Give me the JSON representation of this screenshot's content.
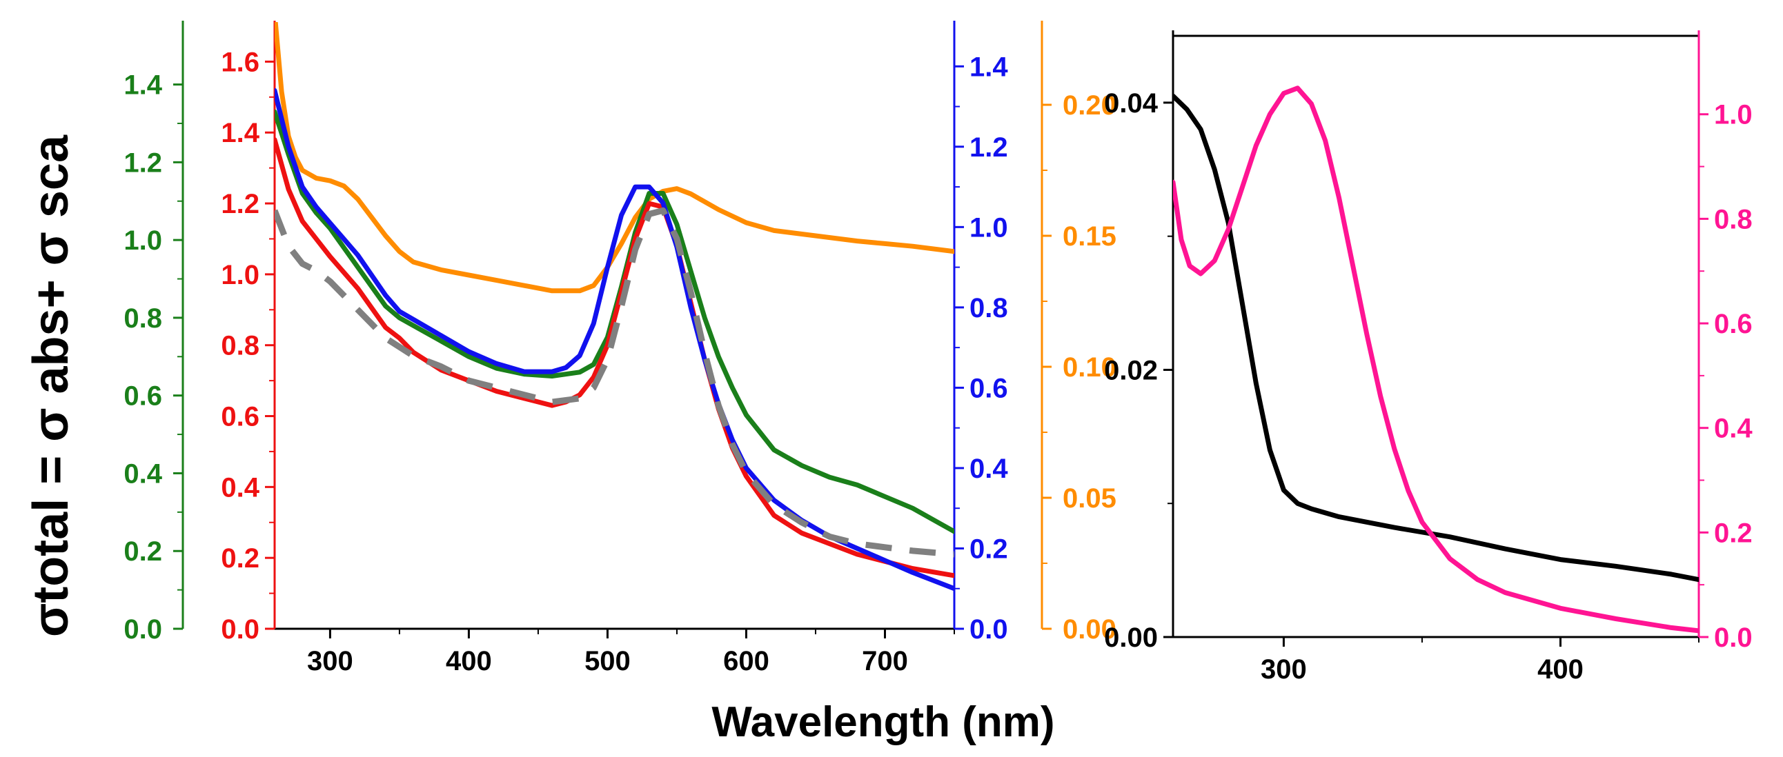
{
  "figure": {
    "ylabel": "σtotal = σ abs+ σ sca",
    "xlabel": "Wavelength (nm)"
  },
  "colors": {
    "green": "#1a7f1a",
    "red": "#ee1111",
    "blue": "#1111ee",
    "orange": "#ff8c00",
    "gray": "#808080",
    "black": "#000000",
    "magenta": "#ff1493"
  },
  "chart_data": [
    {
      "type": "line",
      "title": "",
      "xlabel": "Wavelength (nm)",
      "xlim": [
        260,
        750
      ],
      "xticks": [
        300,
        400,
        500,
        600,
        700
      ],
      "ylabel": "σtotal = σ abs+ σ sca",
      "axes": [
        {
          "name": "green-axis",
          "side": "outer-left",
          "color": "green",
          "ylim": [
            0,
            1.55
          ],
          "ticks": [
            0.0,
            0.2,
            0.4,
            0.6,
            0.8,
            1.0,
            1.2,
            1.4
          ],
          "tick_labels": [
            "0.0",
            "0.2",
            "0.4",
            "0.6",
            "0.8",
            "1.0",
            "1.2",
            "1.4"
          ]
        },
        {
          "name": "red-axis",
          "side": "inner-left",
          "color": "red",
          "ylim": [
            0,
            1.7
          ],
          "ticks": [
            0.0,
            0.2,
            0.4,
            0.6,
            0.8,
            1.0,
            1.2,
            1.4,
            1.6
          ],
          "tick_labels": [
            "0.0",
            "0.2",
            "0.4",
            "0.6",
            "0.8",
            "1.0",
            "1.2",
            "1.4",
            "1.6"
          ]
        },
        {
          "name": "blue-axis",
          "side": "inner-right",
          "color": "blue",
          "ylim": [
            0,
            1.5
          ],
          "ticks": [
            0.0,
            0.2,
            0.4,
            0.6,
            0.8,
            1.0,
            1.2,
            1.4
          ],
          "tick_labels": [
            "0.0",
            "0.2",
            "0.4",
            "0.6",
            "0.8",
            "1.0",
            "1.2",
            "1.4"
          ]
        },
        {
          "name": "orange-axis",
          "side": "outer-right",
          "color": "orange",
          "ylim": [
            0,
            0.23
          ],
          "ticks": [
            0.0,
            0.05,
            0.1,
            0.15,
            0.2
          ],
          "tick_labels": [
            "0.00",
            "0.05",
            "0.10",
            "0.15",
            "0.20"
          ]
        }
      ],
      "series": [
        {
          "name": "orange",
          "color": "orange",
          "axis": 3,
          "dashed": false,
          "x": [
            260,
            265,
            270,
            275,
            280,
            290,
            300,
            310,
            320,
            330,
            340,
            350,
            360,
            380,
            400,
            420,
            440,
            460,
            480,
            490,
            500,
            510,
            520,
            530,
            540,
            550,
            560,
            580,
            600,
            620,
            650,
            680,
            700,
            720,
            750
          ],
          "y": [
            0.235,
            0.205,
            0.188,
            0.18,
            0.175,
            0.172,
            0.171,
            0.169,
            0.164,
            0.157,
            0.15,
            0.144,
            0.14,
            0.137,
            0.135,
            0.133,
            0.131,
            0.129,
            0.129,
            0.131,
            0.138,
            0.147,
            0.157,
            0.164,
            0.167,
            0.168,
            0.166,
            0.16,
            0.155,
            0.152,
            0.15,
            0.148,
            0.147,
            0.146,
            0.144
          ]
        },
        {
          "name": "green",
          "color": "green",
          "axis": 0,
          "dashed": false,
          "x": [
            260,
            270,
            280,
            290,
            300,
            320,
            340,
            350,
            360,
            380,
            400,
            420,
            440,
            460,
            480,
            490,
            500,
            510,
            520,
            530,
            540,
            550,
            560,
            570,
            580,
            590,
            600,
            620,
            640,
            660,
            680,
            700,
            720,
            750
          ],
          "y": [
            1.33,
            1.22,
            1.12,
            1.07,
            1.03,
            0.93,
            0.83,
            0.8,
            0.78,
            0.74,
            0.7,
            0.67,
            0.655,
            0.65,
            0.66,
            0.68,
            0.75,
            0.88,
            1.02,
            1.12,
            1.12,
            1.04,
            0.92,
            0.8,
            0.7,
            0.62,
            0.55,
            0.46,
            0.42,
            0.39,
            0.37,
            0.34,
            0.31,
            0.25
          ]
        },
        {
          "name": "red",
          "color": "red",
          "axis": 1,
          "dashed": false,
          "x": [
            260,
            270,
            280,
            290,
            300,
            320,
            340,
            350,
            360,
            380,
            400,
            420,
            440,
            460,
            470,
            480,
            490,
            500,
            510,
            520,
            530,
            540,
            550,
            560,
            570,
            580,
            590,
            600,
            620,
            640,
            660,
            680,
            700,
            720,
            750
          ],
          "y": [
            1.38,
            1.24,
            1.15,
            1.1,
            1.05,
            0.96,
            0.85,
            0.82,
            0.78,
            0.73,
            0.7,
            0.67,
            0.65,
            0.63,
            0.64,
            0.66,
            0.71,
            0.8,
            0.95,
            1.1,
            1.2,
            1.19,
            1.08,
            0.92,
            0.76,
            0.62,
            0.51,
            0.43,
            0.32,
            0.27,
            0.24,
            0.21,
            0.19,
            0.17,
            0.15
          ]
        },
        {
          "name": "blue",
          "color": "blue",
          "axis": 2,
          "dashed": false,
          "x": [
            260,
            270,
            280,
            290,
            300,
            320,
            340,
            350,
            360,
            380,
            400,
            420,
            440,
            460,
            470,
            480,
            490,
            500,
            510,
            520,
            530,
            540,
            550,
            560,
            570,
            580,
            590,
            600,
            620,
            640,
            660,
            680,
            700,
            720,
            750
          ],
          "y": [
            1.34,
            1.2,
            1.1,
            1.05,
            1.01,
            0.93,
            0.83,
            0.79,
            0.77,
            0.73,
            0.69,
            0.66,
            0.64,
            0.64,
            0.65,
            0.68,
            0.76,
            0.9,
            1.03,
            1.1,
            1.1,
            1.06,
            0.95,
            0.8,
            0.67,
            0.56,
            0.47,
            0.4,
            0.32,
            0.27,
            0.23,
            0.2,
            0.17,
            0.14,
            0.1
          ]
        },
        {
          "name": "gray-dashed",
          "color": "gray",
          "axis": 1,
          "dashed": true,
          "x": [
            260,
            270,
            280,
            290,
            300,
            320,
            340,
            360,
            380,
            400,
            420,
            440,
            460,
            480,
            490,
            500,
            510,
            520,
            530,
            540,
            550,
            560,
            570,
            580,
            590,
            600,
            620,
            640,
            660,
            680,
            700,
            720,
            750
          ],
          "y": [
            1.18,
            1.08,
            1.03,
            1.01,
            0.98,
            0.9,
            0.82,
            0.77,
            0.74,
            0.7,
            0.68,
            0.66,
            0.64,
            0.65,
            0.68,
            0.76,
            0.91,
            1.07,
            1.17,
            1.18,
            1.1,
            0.95,
            0.78,
            0.63,
            0.52,
            0.44,
            0.35,
            0.3,
            0.26,
            0.24,
            0.23,
            0.22,
            0.21
          ]
        }
      ]
    },
    {
      "type": "line",
      "title": "",
      "xlabel": "Wavelength (nm)",
      "xlim": [
        260,
        450
      ],
      "xticks": [
        300,
        400
      ],
      "axes": [
        {
          "name": "black-axis",
          "side": "left",
          "color": "black",
          "ylim": [
            0,
            0.045
          ],
          "ticks": [
            0.0,
            0.02,
            0.04
          ],
          "tick_labels": [
            "0.00",
            "0.02",
            "0.04"
          ]
        },
        {
          "name": "magenta-axis",
          "side": "right",
          "color": "magenta",
          "ylim": [
            0,
            1.15
          ],
          "ticks": [
            0.0,
            0.2,
            0.4,
            0.6,
            0.8,
            1.0
          ],
          "tick_labels": [
            "0.0",
            "0.2",
            "0.4",
            "0.6",
            "0.8",
            "1.0"
          ]
        }
      ],
      "series": [
        {
          "name": "black",
          "color": "black",
          "axis": 0,
          "dashed": false,
          "x": [
            260,
            265,
            270,
            275,
            280,
            285,
            290,
            295,
            300,
            305,
            310,
            320,
            340,
            360,
            380,
            400,
            420,
            440,
            450
          ],
          "y": [
            0.0405,
            0.0395,
            0.038,
            0.035,
            0.031,
            0.025,
            0.019,
            0.014,
            0.011,
            0.01,
            0.0096,
            0.009,
            0.0082,
            0.0075,
            0.0066,
            0.0058,
            0.0053,
            0.0047,
            0.0043
          ]
        },
        {
          "name": "magenta",
          "color": "magenta",
          "axis": 1,
          "dashed": false,
          "x": [
            260,
            263,
            266,
            270,
            275,
            280,
            285,
            290,
            295,
            300,
            305,
            310,
            315,
            320,
            325,
            330,
            335,
            340,
            345,
            350,
            360,
            370,
            380,
            390,
            400,
            420,
            440,
            450
          ],
          "y": [
            0.87,
            0.76,
            0.71,
            0.695,
            0.72,
            0.78,
            0.86,
            0.94,
            1.0,
            1.04,
            1.05,
            1.02,
            0.95,
            0.84,
            0.71,
            0.58,
            0.46,
            0.36,
            0.28,
            0.22,
            0.15,
            0.11,
            0.085,
            0.07,
            0.055,
            0.035,
            0.018,
            0.012
          ]
        }
      ]
    }
  ]
}
